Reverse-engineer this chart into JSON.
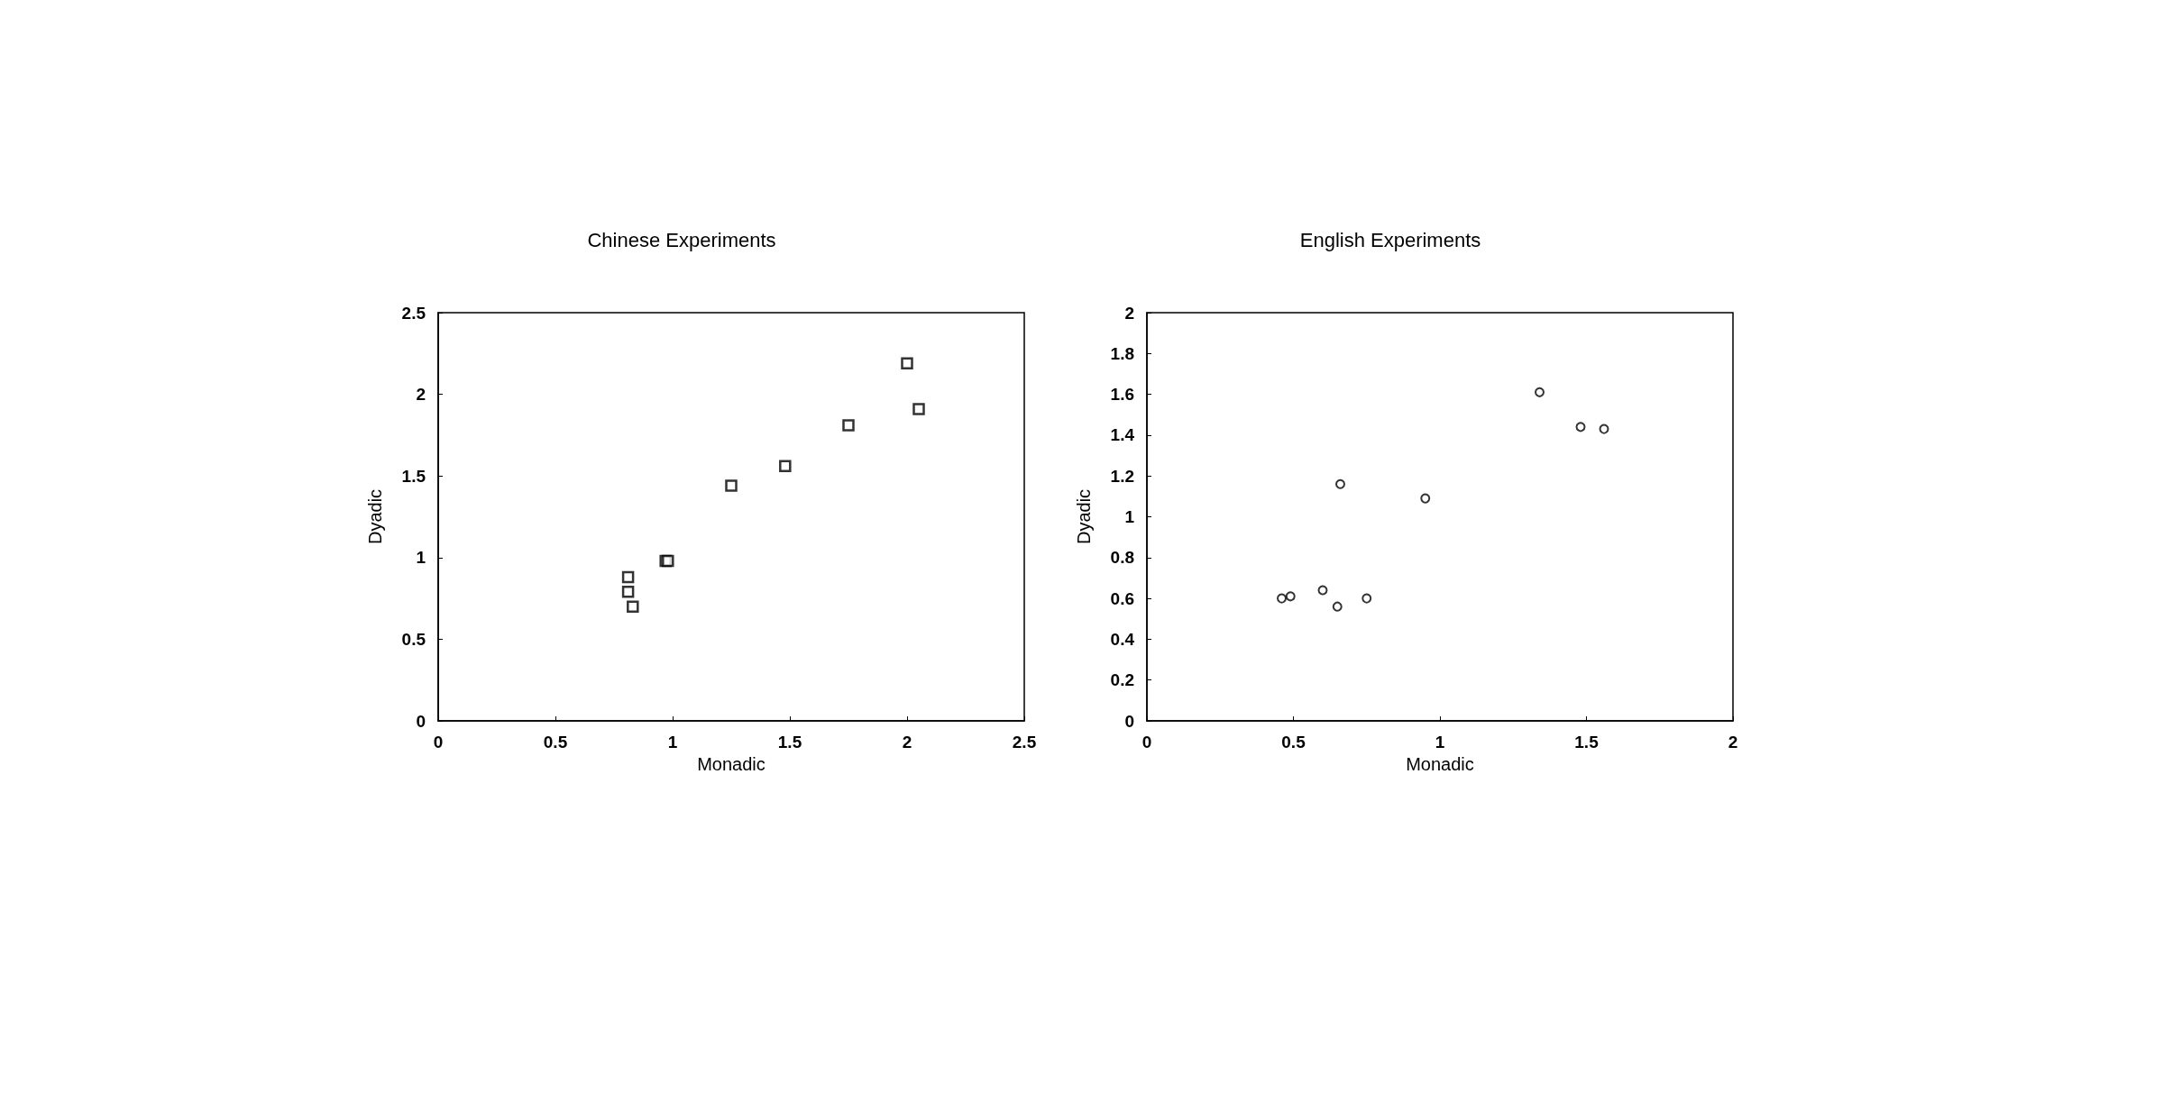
{
  "chart_data": [
    {
      "type": "scatter",
      "title": "Chinese Experiments",
      "xlabel": "Monadic",
      "ylabel": "Dyadic",
      "marker": "square",
      "color": "#000000",
      "x": [
        0.81,
        0.81,
        0.83,
        0.97,
        0.98,
        1.25,
        1.48,
        1.75,
        2.0,
        2.05
      ],
      "values": [
        0.88,
        0.79,
        0.7,
        0.98,
        0.98,
        1.44,
        1.56,
        1.81,
        2.19,
        1.91
      ],
      "xlim": [
        0,
        2.5
      ],
      "ylim": [
        0,
        2.5
      ],
      "xticks": [
        0,
        0.5,
        1,
        1.5,
        2,
        2.5
      ],
      "yticks": [
        0,
        0.5,
        1,
        1.5,
        2,
        2.5
      ]
    },
    {
      "type": "scatter",
      "title": "English Experiments",
      "xlabel": "Monadic",
      "ylabel": "Dyadic",
      "marker": "circle",
      "color": "#000000",
      "x": [
        0.46,
        0.49,
        0.6,
        0.65,
        0.66,
        0.75,
        0.95,
        1.34,
        1.48,
        1.56
      ],
      "values": [
        0.6,
        0.61,
        0.64,
        0.56,
        1.16,
        0.6,
        1.09,
        1.61,
        1.44,
        1.43
      ],
      "xlim": [
        0,
        2
      ],
      "ylim": [
        0,
        2
      ],
      "xticks": [
        0,
        0.5,
        1,
        1.5,
        2
      ],
      "yticks": [
        0,
        0.2,
        0.4,
        0.6,
        0.8,
        1,
        1.2,
        1.4,
        1.6,
        1.8,
        2
      ]
    }
  ]
}
